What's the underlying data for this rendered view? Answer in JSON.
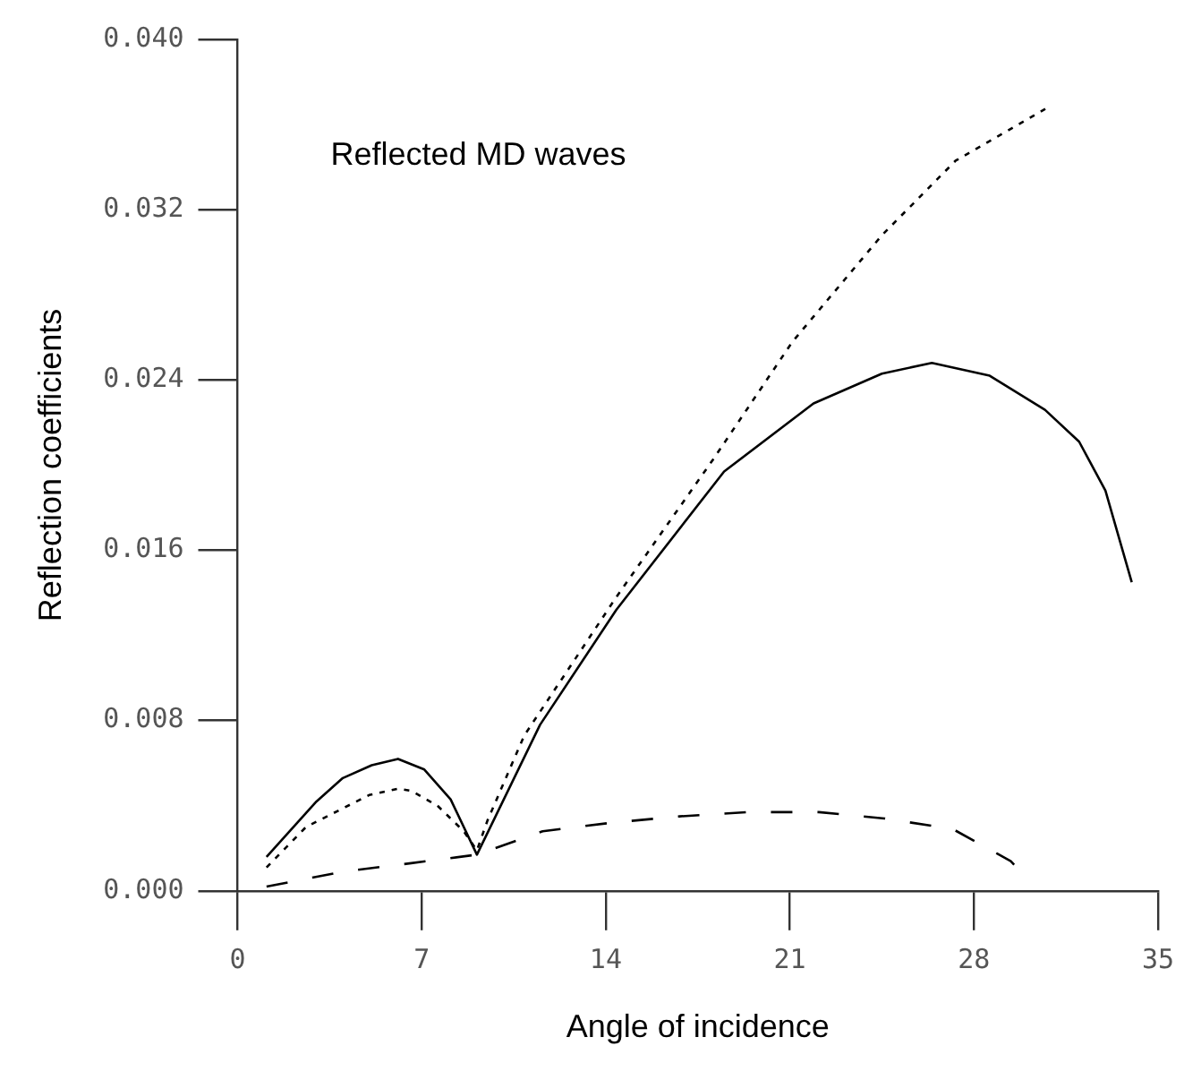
{
  "chart_data": {
    "type": "line",
    "xlabel": "Angle of incidence",
    "ylabel": "Reflection coefficients",
    "annotations": [
      "Reflected MD waves"
    ],
    "xlim": [
      0,
      35
    ],
    "xticks": [
      0,
      7,
      14,
      21,
      28,
      35
    ],
    "ylim": [
      0,
      0.04
    ],
    "yticks": [
      {
        "value": 0,
        "label": "0.000"
      },
      {
        "value": 0.008,
        "label": "0.008"
      },
      {
        "value": 0.016,
        "label": "0.016"
      },
      {
        "value": 0.024,
        "label": "0.024"
      },
      {
        "value": 0.032,
        "label": "0.032"
      },
      {
        "value": 0.04,
        "label": "0.040"
      }
    ],
    "grid": false,
    "legend": false,
    "marker": "none",
    "series": [
      {
        "color": "#000000",
        "line_style": "solid",
        "x": [
          1.1,
          3.0,
          4.0,
          5.1,
          6.1,
          7.1,
          8.1,
          9.1,
          11.5,
          14.4,
          18.5,
          21.9,
          24.5,
          26.4,
          28.6,
          30.7,
          32.0,
          33.0,
          34.0
        ],
        "values": [
          0.0016,
          0.0042,
          0.0053,
          0.0059,
          0.0062,
          0.0057,
          0.0043,
          0.0017,
          0.0078,
          0.0132,
          0.0197,
          0.0229,
          0.0243,
          0.0248,
          0.0242,
          0.0226,
          0.0211,
          0.0188,
          0.0145
        ]
      },
      {
        "color": "#000000",
        "line_style": "dotted",
        "x": [
          1.1,
          2.6,
          5.0,
          6.1,
          6.6,
          7.6,
          8.6,
          9.1,
          9.5,
          10.9,
          14.4,
          18.1,
          21.1,
          24.5,
          27.3,
          30.8
        ],
        "values": [
          0.0011,
          0.003,
          0.0045,
          0.0048,
          0.0047,
          0.004,
          0.0028,
          0.0019,
          0.0033,
          0.0073,
          0.0138,
          0.0203,
          0.0258,
          0.0308,
          0.0343,
          0.0368
        ]
      },
      {
        "color": "#000000",
        "line_style": "dashed",
        "x": [
          1.1,
          4.0,
          6.6,
          9.1,
          11.6,
          14.2,
          16.8,
          19.4,
          22.1,
          24.6,
          27.2,
          29.4,
          29.7
        ],
        "values": [
          0.0002,
          0.0009,
          0.0013,
          0.0017,
          0.0028,
          0.0032,
          0.0035,
          0.0037,
          0.0037,
          0.0034,
          0.0029,
          0.0014,
          0.001
        ]
      }
    ]
  }
}
